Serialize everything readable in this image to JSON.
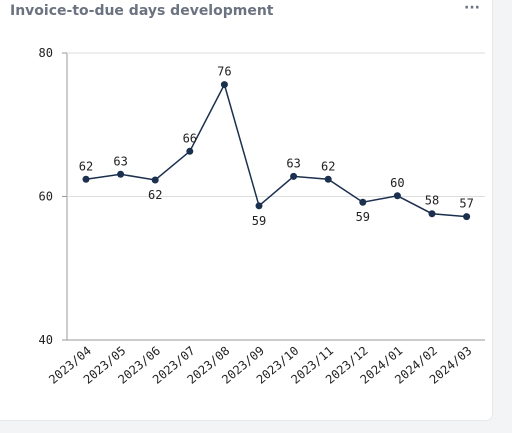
{
  "chart_data": {
    "type": "line",
    "title": "Invoice-to-due days development",
    "categories": [
      "2023/04",
      "2023/05",
      "2023/06",
      "2023/07",
      "2023/08",
      "2023/09",
      "2023/10",
      "2023/11",
      "2023/12",
      "2024/01",
      "2024/02",
      "2024/03"
    ],
    "series": [
      {
        "name": "Invoice-to-due days",
        "color": "#1b2f4e",
        "values": [
          62.4,
          63.1,
          62.3,
          66.3,
          75.6,
          58.7,
          62.8,
          62.4,
          59.2,
          60.1,
          57.6,
          57.2
        ],
        "value_labels": [
          "62",
          "63",
          "62",
          "66",
          "76",
          "59",
          "63",
          "62",
          "59",
          "60",
          "58",
          "57"
        ]
      }
    ],
    "ylim": [
      40,
      80
    ],
    "yticks": [
      40,
      60,
      80
    ],
    "grid": true
  }
}
